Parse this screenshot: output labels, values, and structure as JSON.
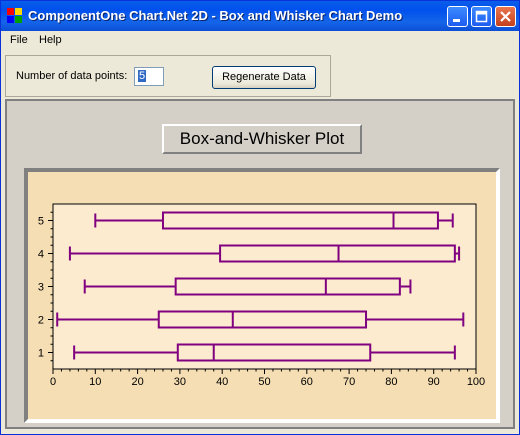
{
  "window": {
    "title": "ComponentOne Chart.Net 2D - Box and Whisker Chart Demo"
  },
  "menu": {
    "items": [
      "File",
      "Help"
    ]
  },
  "controls": {
    "num_points_label": "Number of data points:",
    "num_points_value": "5",
    "regenerate_label": "Regenerate Data"
  },
  "chart_data": {
    "type": "box",
    "title": "Box-and-Whisker Plot",
    "orientation": "horizontal",
    "xlim": [
      0,
      100
    ],
    "x_ticks": [
      0,
      10,
      20,
      30,
      40,
      50,
      60,
      70,
      80,
      90,
      100
    ],
    "categories": [
      "1",
      "2",
      "3",
      "4",
      "5"
    ],
    "boxes": [
      {
        "category": "1",
        "min": 5,
        "q1": 29.5,
        "median": 38,
        "q3": 75,
        "max": 95
      },
      {
        "category": "2",
        "min": 1,
        "q1": 25,
        "median": 42.5,
        "q3": 74,
        "max": 97
      },
      {
        "category": "3",
        "min": 7.5,
        "q1": 29,
        "median": 64.5,
        "q3": 82,
        "max": 84.5
      },
      {
        "category": "4",
        "min": 4,
        "q1": 39.5,
        "median": 67.5,
        "q3": 95,
        "max": 96
      },
      {
        "category": "5",
        "min": 10,
        "q1": 26,
        "median": 80.5,
        "q3": 91,
        "max": 94.5
      }
    ],
    "colors": {
      "box": "#800080",
      "plot_background": "#fdebd0",
      "chart_background": "#f5deb3"
    }
  }
}
